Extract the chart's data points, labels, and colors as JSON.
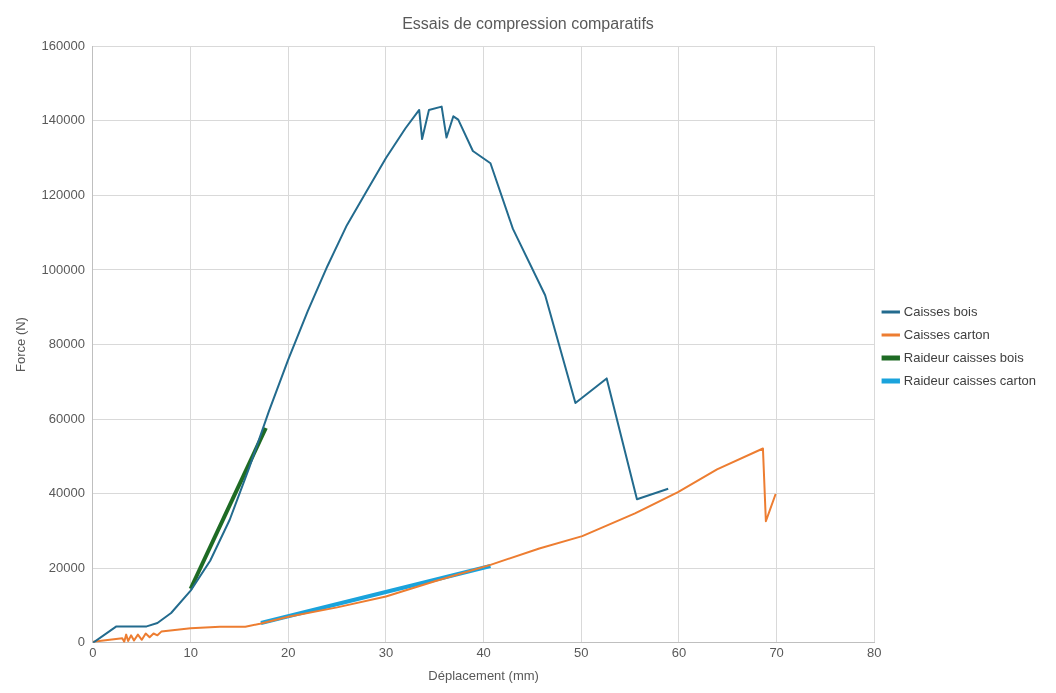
{
  "chart_data": {
    "type": "line",
    "title": "Essais de compression comparatifs",
    "xlabel": "Déplacement (mm)",
    "ylabel": "Force (N)",
    "xlim": [
      0,
      80
    ],
    "xticks": [
      0,
      10,
      20,
      30,
      40,
      50,
      60,
      70,
      80
    ],
    "ylim": [
      0,
      160000
    ],
    "yticks": [
      0,
      20000,
      40000,
      60000,
      80000,
      100000,
      120000,
      140000,
      160000
    ],
    "grid": true,
    "legend": "right",
    "marker": "none",
    "series": [
      {
        "name": "Caisses bois",
        "color": "#236b8e",
        "x": [
          0,
          2.4,
          5.5,
          6.6,
          8,
          10,
          12,
          14,
          16,
          18,
          20,
          22,
          24,
          26,
          28,
          30,
          32,
          33.4,
          33.7,
          34.4,
          35.7,
          36.2,
          36.9,
          37.4,
          38.9,
          40.7,
          43,
          46.3,
          49.4,
          52.6,
          55.7,
          58.9
        ],
        "values": [
          0,
          4400,
          4400,
          5300,
          8000,
          14000,
          22000,
          33000,
          47000,
          62000,
          76000,
          89000,
          101000,
          112000,
          121000,
          130000,
          138000,
          142900,
          135100,
          142900,
          143800,
          135500,
          141200,
          140300,
          131900,
          128600,
          111000,
          93200,
          64300,
          70900,
          38500,
          41300
        ]
      },
      {
        "name": "Caisses carton",
        "color": "#ed7d31",
        "x": [
          0,
          3,
          3.2,
          3.4,
          3.6,
          3.9,
          4.2,
          4.6,
          5,
          5.4,
          5.8,
          6.2,
          6.6,
          7,
          10,
          13,
          15.6,
          17.1,
          20,
          25,
          30,
          35,
          40.7,
          45.7,
          50.1,
          55.5,
          59.9,
          63.9,
          68.6,
          68.9,
          69.9
        ],
        "values": [
          300,
          1200,
          300,
          2200,
          500,
          2000,
          600,
          2200,
          800,
          2500,
          1500,
          2500,
          2000,
          3000,
          3900,
          4300,
          4300,
          5100,
          7000,
          9500,
          12400,
          16500,
          20900,
          25300,
          28600,
          34700,
          40400,
          46500,
          52100,
          32600,
          39900
        ]
      },
      {
        "name": "Raideur caisses bois",
        "color": "#1e6b24",
        "x": [
          10,
          17.7
        ],
        "values": [
          14500,
          57600
        ]
      },
      {
        "name": "Raideur caisses carton",
        "color": "#1aa3dc",
        "x": [
          17.2,
          40.7
        ],
        "values": [
          5300,
          20600
        ]
      }
    ]
  }
}
